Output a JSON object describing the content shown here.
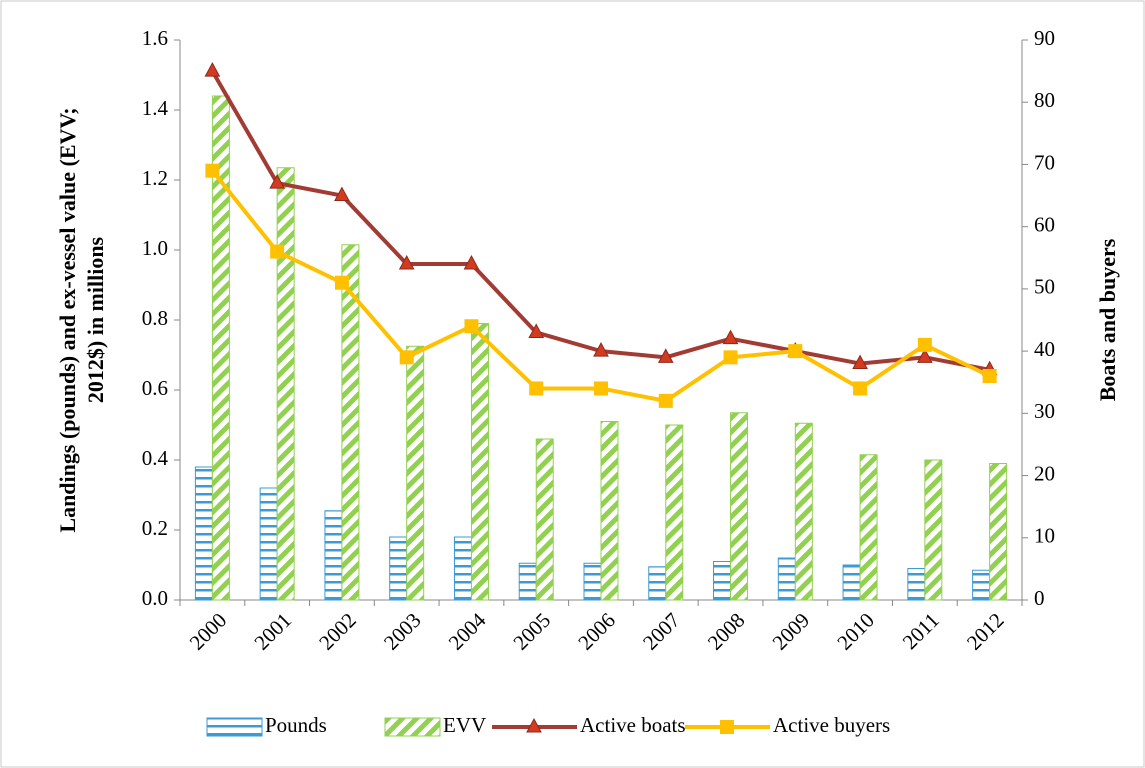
{
  "chart_data": {
    "type": "bar_line",
    "categories": [
      "2000",
      "2001",
      "2002",
      "2003",
      "2004",
      "2005",
      "2006",
      "2007",
      "2008",
      "2009",
      "2010",
      "2011",
      "2012"
    ],
    "ylabel": [
      "Landings (pounds) and ex-vessel value (EVV;",
      "2012$) in millions"
    ],
    "y2label": "Boats and buyers",
    "ylim": [
      0,
      1.6
    ],
    "yticks": [
      {
        "value": 0,
        "label": "0.0"
      },
      0.2,
      0.4,
      0.6,
      0.8,
      {
        "value": 1,
        "label": "1.0"
      },
      1.2,
      1.4,
      1.6
    ],
    "y2lim": [
      0,
      90
    ],
    "y2ticks": [
      0,
      10,
      20,
      30,
      40,
      50,
      60,
      70,
      80,
      90
    ],
    "legend": "bottom",
    "series": [
      {
        "name": "Pounds",
        "type": "bar",
        "color": "#3a9bd5",
        "values": [
          0.38,
          0.32,
          0.255,
          0.18,
          0.18,
          0.105,
          0.105,
          0.095,
          0.11,
          0.12,
          0.1,
          0.09,
          0.085
        ]
      },
      {
        "name": "EVV",
        "type": "bar",
        "color": "#92d050",
        "values": [
          1.44,
          1.235,
          1.015,
          0.725,
          0.79,
          0.46,
          0.51,
          0.5,
          0.535,
          0.505,
          0.415,
          0.4,
          0.39
        ]
      },
      {
        "name": "Active boats",
        "type": "line",
        "axis": "y2",
        "color": "#a23b33",
        "marker_color": "#d43a1f",
        "values": [
          85,
          67,
          65,
          54,
          54,
          43,
          40,
          39,
          42,
          40,
          38,
          39,
          37
        ]
      },
      {
        "name": "Active buyers",
        "type": "line",
        "axis": "y2",
        "color": "#ffc000",
        "marker_color": "#ffc000",
        "values": [
          69,
          56,
          51,
          39,
          44,
          34,
          34,
          32,
          39,
          40,
          34,
          41,
          36
        ]
      }
    ]
  }
}
